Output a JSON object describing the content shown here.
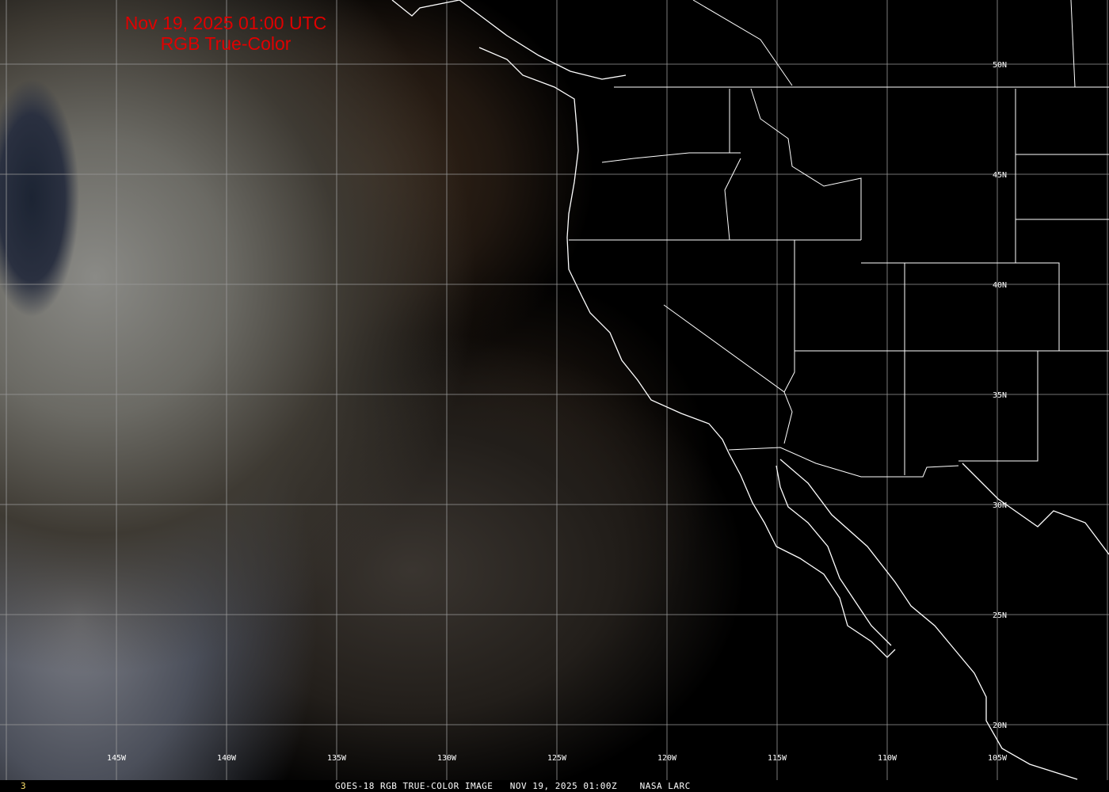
{
  "title": {
    "line1": "Nov 19, 2025 01:00 UTC",
    "line2": "RGB True-Color"
  },
  "longitude_labels": [
    "145W",
    "140W",
    "135W",
    "130W",
    "125W",
    "120W",
    "115W",
    "110W",
    "105W"
  ],
  "latitude_labels": [
    "50N",
    "45N",
    "40N",
    "35N",
    "30N",
    "25N",
    "20N"
  ],
  "footer": {
    "frame_number": "3",
    "caption": "GOES-18 RGB TRUE-COLOR IMAGE   NOV 19, 2025 01:00Z    NASA LARC"
  },
  "colors": {
    "title": "#e00000",
    "grid": "#9a9a9a",
    "borders": "#ffffff",
    "frame_number": "#ffe36b"
  }
}
